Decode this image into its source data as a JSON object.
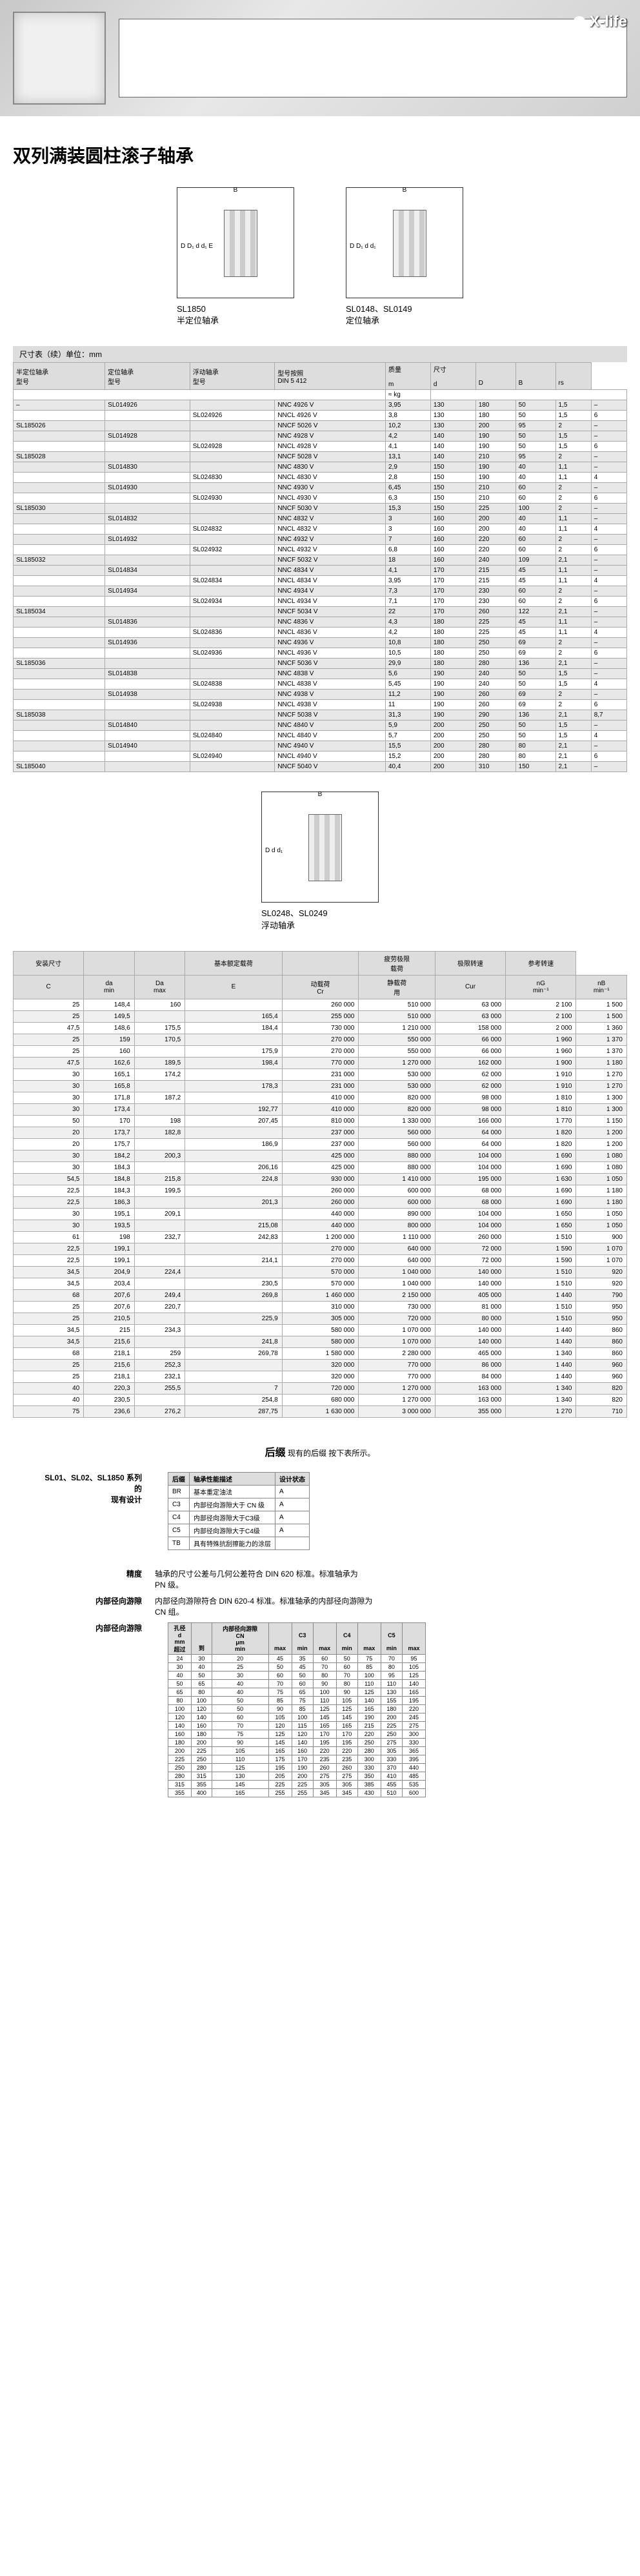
{
  "hero": {
    "brand": "X-life"
  },
  "title": "双列满装圆柱滚子轴承",
  "diag1": {
    "code": "SL1850",
    "name": "半定位轴承"
  },
  "diag2": {
    "code": "SL0148、SL0149",
    "name": "定位轴承"
  },
  "diag3": {
    "code": "SL0248、SL0249",
    "name": "浮动轴承"
  },
  "t1_caption": "尺寸表（续）单位：mm",
  "t1_headers": [
    "半定位轴承\n型号",
    "定位轴承\n型号",
    "浮动轴承\n型号",
    "型号按照\nDIN 5 412",
    "质量\n\nm",
    "尺寸\n\nd",
    "\n\nD",
    "\n\nB",
    "\n\nrs"
  ],
  "t1_unit": "≈ kg",
  "t1_rows": [
    [
      "–",
      "SL014926",
      "",
      "NNC 4926 V",
      "3,95",
      "130",
      "180",
      "50",
      "1,5",
      "–"
    ],
    [
      "",
      "",
      "SL024926",
      "NNCL 4926 V",
      "3,8",
      "130",
      "180",
      "50",
      "1,5",
      "6"
    ],
    [
      "SL185026",
      "",
      "",
      "NNCF 5026 V",
      "10,2",
      "130",
      "200",
      "95",
      "2",
      "–"
    ],
    [
      "",
      "SL014928",
      "",
      "NNC 4928 V",
      "4,2",
      "140",
      "190",
      "50",
      "1,5",
      "–"
    ],
    [
      "",
      "",
      "SL024928",
      "NNCL 4928 V",
      "4,1",
      "140",
      "190",
      "50",
      "1,5",
      "6"
    ],
    [
      "SL185028",
      "",
      "",
      "NNCF 5028 V",
      "13,1",
      "140",
      "210",
      "95",
      "2",
      "–"
    ],
    [
      "",
      "SL014830",
      "",
      "NNC 4830 V",
      "2,9",
      "150",
      "190",
      "40",
      "1,1",
      "–"
    ],
    [
      "",
      "",
      "SL024830",
      "NNCL 4830 V",
      "2,8",
      "150",
      "190",
      "40",
      "1,1",
      "4"
    ],
    [
      "",
      "SL014930",
      "",
      "NNC 4930 V",
      "6,45",
      "150",
      "210",
      "60",
      "2",
      "–"
    ],
    [
      "",
      "",
      "SL024930",
      "NNCL 4930 V",
      "6,3",
      "150",
      "210",
      "60",
      "2",
      "6"
    ],
    [
      "SL185030",
      "",
      "",
      "NNCF 5030 V",
      "15,3",
      "150",
      "225",
      "100",
      "2",
      "–"
    ],
    [
      "",
      "SL014832",
      "",
      "NNC 4832 V",
      "3",
      "160",
      "200",
      "40",
      "1,1",
      "–"
    ],
    [
      "",
      "",
      "SL024832",
      "NNCL 4832 V",
      "3",
      "160",
      "200",
      "40",
      "1,1",
      "4"
    ],
    [
      "",
      "SL014932",
      "",
      "NNC 4932 V",
      "7",
      "160",
      "220",
      "60",
      "2",
      "–"
    ],
    [
      "",
      "",
      "SL024932",
      "NNCL 4932 V",
      "6,8",
      "160",
      "220",
      "60",
      "2",
      "6"
    ],
    [
      "SL185032",
      "",
      "",
      "NNCF 5032 V",
      "18",
      "160",
      "240",
      "109",
      "2,1",
      "–"
    ],
    [
      "",
      "SL014834",
      "",
      "NNC 4834 V",
      "4,1",
      "170",
      "215",
      "45",
      "1,1",
      "–"
    ],
    [
      "",
      "",
      "SL024834",
      "NNCL 4834 V",
      "3,95",
      "170",
      "215",
      "45",
      "1,1",
      "4"
    ],
    [
      "",
      "SL014934",
      "",
      "NNC 4934 V",
      "7,3",
      "170",
      "230",
      "60",
      "2",
      "–"
    ],
    [
      "",
      "",
      "SL024934",
      "NNCL 4934 V",
      "7,1",
      "170",
      "230",
      "60",
      "2",
      "6"
    ],
    [
      "SL185034",
      "",
      "",
      "NNCF 5034 V",
      "22",
      "170",
      "260",
      "122",
      "2,1",
      "–"
    ],
    [
      "",
      "SL014836",
      "",
      "NNC 4836 V",
      "4,3",
      "180",
      "225",
      "45",
      "1,1",
      "–"
    ],
    [
      "",
      "",
      "SL024836",
      "NNCL 4836 V",
      "4,2",
      "180",
      "225",
      "45",
      "1,1",
      "4"
    ],
    [
      "",
      "SL014936",
      "",
      "NNC 4936 V",
      "10,8",
      "180",
      "250",
      "69",
      "2",
      "–"
    ],
    [
      "",
      "",
      "SL024936",
      "NNCL 4936 V",
      "10,5",
      "180",
      "250",
      "69",
      "2",
      "6"
    ],
    [
      "SL185036",
      "",
      "",
      "NNCF 5036 V",
      "29,9",
      "180",
      "280",
      "136",
      "2,1",
      "–"
    ],
    [
      "",
      "SL014838",
      "",
      "NNC 4838 V",
      "5,6",
      "190",
      "240",
      "50",
      "1,5",
      "–"
    ],
    [
      "",
      "",
      "SL024838",
      "NNCL 4838 V",
      "5,45",
      "190",
      "240",
      "50",
      "1,5",
      "4"
    ],
    [
      "",
      "SL014938",
      "",
      "NNC 4938 V",
      "11,2",
      "190",
      "260",
      "69",
      "2",
      "–"
    ],
    [
      "",
      "",
      "SL024938",
      "NNCL 4938 V",
      "11",
      "190",
      "260",
      "69",
      "2",
      "6"
    ],
    [
      "SL185038",
      "",
      "",
      "NNCF 5038 V",
      "31,3",
      "190",
      "290",
      "136",
      "2,1",
      "8,7"
    ],
    [
      "",
      "SL014840",
      "",
      "NNC 4840 V",
      "5,9",
      "200",
      "250",
      "50",
      "1,5",
      "–"
    ],
    [
      "",
      "",
      "SL024840",
      "NNCL 4840 V",
      "5,7",
      "200",
      "250",
      "50",
      "1,5",
      "4"
    ],
    [
      "",
      "SL014940",
      "",
      "NNC 4940 V",
      "15,5",
      "200",
      "280",
      "80",
      "2,1",
      "–"
    ],
    [
      "",
      "",
      "SL024940",
      "NNCL 4940 V",
      "15,2",
      "200",
      "280",
      "80",
      "2,1",
      "6"
    ],
    [
      "SL185040",
      "",
      "",
      "NNCF 5040 V",
      "40,4",
      "200",
      "310",
      "150",
      "2,1",
      "–"
    ]
  ],
  "t2_headers_group": [
    "安装尺寸",
    "",
    "",
    "基本额定载荷",
    "",
    "疲劳极限\n载荷",
    "极限转速",
    "参考转速"
  ],
  "t2_headers": [
    "C",
    "da\nmin",
    "Da\nmax",
    "E",
    "动载荷\nCr",
    "静载荷\n用",
    "Cur",
    "nG\nmin⁻¹",
    "nB\nmin⁻¹"
  ],
  "t2_unit_c": "",
  "t2_rows": [
    [
      "25",
      "148,4",
      "160",
      "",
      "260 000",
      "510 000",
      "63 000",
      "2 100",
      "1 500"
    ],
    [
      "25",
      "149,5",
      "",
      "165,4",
      "255 000",
      "510 000",
      "63 000",
      "2 100",
      "1 500"
    ],
    [
      "47,5",
      "148,6",
      "175,5",
      "184,4",
      "730 000",
      "1 210 000",
      "158 000",
      "2 000",
      "1 360"
    ],
    [
      "25",
      "159",
      "170,5",
      "",
      "270 000",
      "550 000",
      "66 000",
      "1 960",
      "1 370"
    ],
    [
      "25",
      "160",
      "",
      "175,9",
      "270 000",
      "550 000",
      "66 000",
      "1 960",
      "1 370"
    ],
    [
      "47,5",
      "162,6",
      "189,5",
      "198,4",
      "770 000",
      "1 270 000",
      "162 000",
      "1 900",
      "1 180"
    ],
    [
      "30",
      "165,1",
      "174,2",
      "",
      "231 000",
      "530 000",
      "62 000",
      "1 910",
      "1 270"
    ],
    [
      "30",
      "165,8",
      "",
      "178,3",
      "231 000",
      "530 000",
      "62 000",
      "1 910",
      "1 270"
    ],
    [
      "30",
      "171,8",
      "187,2",
      "",
      "410 000",
      "820 000",
      "98 000",
      "1 810",
      "1 300"
    ],
    [
      "30",
      "173,4",
      "",
      "192,77",
      "410 000",
      "820 000",
      "98 000",
      "1 810",
      "1 300"
    ],
    [
      "50",
      "170",
      "198",
      "207,45",
      "810 000",
      "1 330 000",
      "166 000",
      "1 770",
      "1 150"
    ],
    [
      "20",
      "173,7",
      "182,8",
      "",
      "237 000",
      "560 000",
      "64 000",
      "1 820",
      "1 200"
    ],
    [
      "20",
      "175,7",
      "",
      "186,9",
      "237 000",
      "560 000",
      "64 000",
      "1 820",
      "1 200"
    ],
    [
      "30",
      "184,2",
      "200,3",
      "",
      "425 000",
      "880 000",
      "104 000",
      "1 690",
      "1 080"
    ],
    [
      "30",
      "184,3",
      "",
      "206,16",
      "425 000",
      "880 000",
      "104 000",
      "1 690",
      "1 080"
    ],
    [
      "54,5",
      "184,8",
      "215,8",
      "224,8",
      "930 000",
      "1 410 000",
      "195 000",
      "1 630",
      "1 050"
    ],
    [
      "22,5",
      "184,3",
      "199,5",
      "",
      "260 000",
      "600 000",
      "68 000",
      "1 690",
      "1 180"
    ],
    [
      "22,5",
      "186,3",
      "",
      "201,3",
      "260 000",
      "600 000",
      "68 000",
      "1 690",
      "1 180"
    ],
    [
      "30",
      "195,1",
      "209,1",
      "",
      "440 000",
      "890 000",
      "104 000",
      "1 650",
      "1 050"
    ],
    [
      "30",
      "193,5",
      "",
      "215,08",
      "440 000",
      "800 000",
      "104 000",
      "1 650",
      "1 050"
    ],
    [
      "61",
      "198",
      "232,7",
      "242,83",
      "1 200 000",
      "1 110 000",
      "260 000",
      "1 510",
      "900"
    ],
    [
      "22,5",
      "199,1",
      "",
      "",
      "270 000",
      "640 000",
      "72 000",
      "1 590",
      "1 070"
    ],
    [
      "22,5",
      "199,1",
      "",
      "214,1",
      "270 000",
      "640 000",
      "72 000",
      "1 590",
      "1 070"
    ],
    [
      "34,5",
      "204,9",
      "224,4",
      "",
      "570 000",
      "1 040 000",
      "140 000",
      "1 510",
      "920"
    ],
    [
      "34,5",
      "203,4",
      "",
      "230,5",
      "570 000",
      "1 040 000",
      "140 000",
      "1 510",
      "920"
    ],
    [
      "68",
      "207,6",
      "249,4",
      "269,8",
      "1 460 000",
      "2 150 000",
      "405 000",
      "1 440",
      "790"
    ],
    [
      "25",
      "207,6",
      "220,7",
      "",
      "310 000",
      "730 000",
      "81 000",
      "1 510",
      "950"
    ],
    [
      "25",
      "210,5",
      "",
      "225,9",
      "305 000",
      "720 000",
      "80 000",
      "1 510",
      "950"
    ],
    [
      "34,5",
      "215",
      "234,3",
      "",
      "580 000",
      "1 070 000",
      "140 000",
      "1 440",
      "860"
    ],
    [
      "34,5",
      "215,6",
      "",
      "241,8",
      "580 000",
      "1 070 000",
      "140 000",
      "1 440",
      "860"
    ],
    [
      "68",
      "218,1",
      "259",
      "269,78",
      "1 580 000",
      "2 280 000",
      "465 000",
      "1 340",
      "860"
    ],
    [
      "25",
      "215,6",
      "252,3",
      "",
      "320 000",
      "770 000",
      "86 000",
      "1 440",
      "960"
    ],
    [
      "25",
      "218,1",
      "232,1",
      "",
      "320 000",
      "770 000",
      "84 000",
      "1 440",
      "960"
    ],
    [
      "40",
      "220,3",
      "255,5",
      "7",
      "720 000",
      "1 270 000",
      "163 000",
      "1 340",
      "820"
    ],
    [
      "40",
      "230,5",
      "",
      "254,8",
      "680 000",
      "1 270 000",
      "163 000",
      "1 340",
      "820"
    ],
    [
      "75",
      "236,6",
      "276,2",
      "287,75",
      "1 630 000",
      "3 000 000",
      "355 000",
      "1 270",
      "710"
    ]
  ],
  "suffix": {
    "title": "后缀",
    "desc": "现有的后缀 按下表所示。",
    "label": "SL01、SL02、SL1850 系列的\n现有设计",
    "table_h": [
      "后缀",
      "轴承性能描述",
      "设计状态"
    ],
    "table_r": [
      [
        "BR",
        "基本重定油法",
        "A"
      ],
      [
        "C3",
        "内部径向游隙大于 CN 级",
        "A"
      ],
      [
        "C4",
        "内部径向游隙大于C3级",
        "A"
      ],
      [
        "C5",
        "内部径向游隙大于C4级",
        "A"
      ],
      [
        "TB",
        "具有特殊抗刮擦能力的涂层",
        ""
      ]
    ]
  },
  "precision": {
    "label": "精度",
    "text": "轴承的尺寸公差与几何公差符合 DIN 620 标准。标准轴承为\nPN 级。"
  },
  "clearance": {
    "label": "内部径向游隙",
    "text": "内部径向游隙符合 DIN 620-4 标准。标准轴承的内部径向游隙为\nCN 组。"
  },
  "tol": {
    "label": "内部径向游隙",
    "headers": [
      "孔径\nd\nmm\n超过",
      "\n\n\n到",
      "内部径向游隙\nCN\nμm\nmin",
      "\n\n\nmax",
      "\nC3\n\nmin",
      "\n\n\nmax",
      "\nC4\n\nmin",
      "\n\n\nmax",
      "\nC5\n\nmin",
      "\n\n\nmax"
    ],
    "rows": [
      [
        "24",
        "30",
        "20",
        "45",
        "35",
        "60",
        "50",
        "75",
        "70",
        "95"
      ],
      [
        "30",
        "40",
        "25",
        "50",
        "45",
        "70",
        "60",
        "85",
        "80",
        "105"
      ],
      [
        "40",
        "50",
        "30",
        "60",
        "50",
        "80",
        "70",
        "100",
        "95",
        "125"
      ],
      [
        "50",
        "65",
        "40",
        "70",
        "60",
        "90",
        "80",
        "110",
        "110",
        "140"
      ],
      [
        "65",
        "80",
        "40",
        "75",
        "65",
        "100",
        "90",
        "125",
        "130",
        "165"
      ],
      [
        "80",
        "100",
        "50",
        "85",
        "75",
        "110",
        "105",
        "140",
        "155",
        "195"
      ],
      [
        "100",
        "120",
        "50",
        "90",
        "85",
        "125",
        "125",
        "165",
        "180",
        "220"
      ],
      [
        "120",
        "140",
        "60",
        "105",
        "100",
        "145",
        "145",
        "190",
        "200",
        "245"
      ],
      [
        "140",
        "160",
        "70",
        "120",
        "115",
        "165",
        "165",
        "215",
        "225",
        "275"
      ],
      [
        "160",
        "180",
        "75",
        "125",
        "120",
        "170",
        "170",
        "220",
        "250",
        "300"
      ],
      [
        "180",
        "200",
        "90",
        "145",
        "140",
        "195",
        "195",
        "250",
        "275",
        "330"
      ],
      [
        "200",
        "225",
        "105",
        "165",
        "160",
        "220",
        "220",
        "280",
        "305",
        "365"
      ],
      [
        "225",
        "250",
        "110",
        "175",
        "170",
        "235",
        "235",
        "300",
        "330",
        "395"
      ],
      [
        "250",
        "280",
        "125",
        "195",
        "190",
        "260",
        "260",
        "330",
        "370",
        "440"
      ],
      [
        "280",
        "315",
        "130",
        "205",
        "200",
        "275",
        "275",
        "350",
        "410",
        "485"
      ],
      [
        "315",
        "355",
        "145",
        "225",
        "225",
        "305",
        "305",
        "385",
        "455",
        "535"
      ],
      [
        "355",
        "400",
        "165",
        "255",
        "255",
        "345",
        "345",
        "430",
        "510",
        "600"
      ]
    ]
  }
}
